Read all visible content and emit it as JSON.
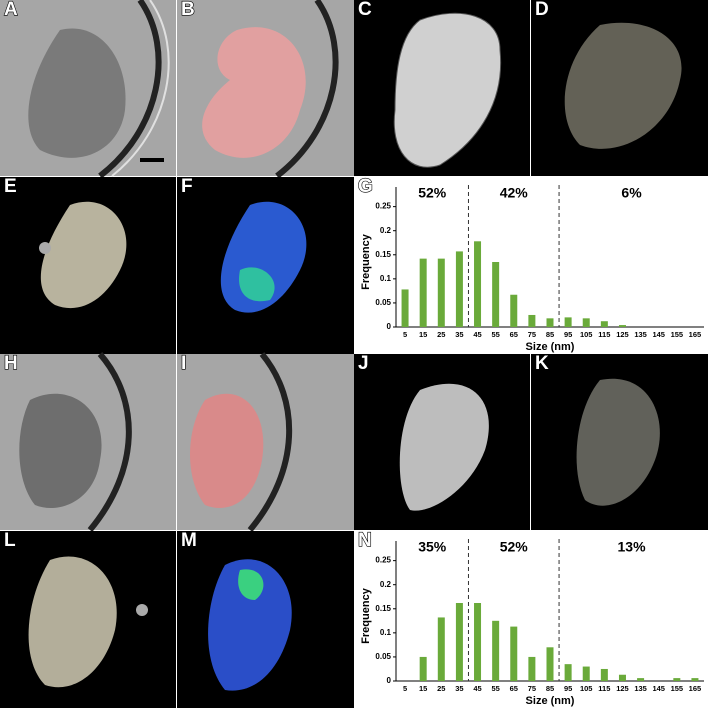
{
  "panels": [
    "A",
    "B",
    "C",
    "D",
    "E",
    "F",
    "G",
    "H",
    "I",
    "J",
    "K",
    "L",
    "M",
    "N"
  ],
  "chart_data": [
    {
      "type": "bar",
      "xlabel": "Size (nm)",
      "ylabel": "Frequency",
      "annotations": [
        "52%",
        "42%",
        "6%"
      ],
      "categories": [
        "5",
        "15",
        "25",
        "35",
        "45",
        "55",
        "65",
        "75",
        "85",
        "95",
        "105",
        "115",
        "125",
        "135",
        "145",
        "155",
        "165"
      ],
      "values": [
        0.078,
        0.142,
        0.142,
        0.157,
        0.178,
        0.135,
        0.067,
        0.025,
        0.018,
        0.02,
        0.018,
        0.012,
        0.004,
        0,
        0,
        0,
        0
      ],
      "color": "#6aaa3a",
      "ylim": [
        0,
        0.27
      ],
      "yticks": [
        0,
        0.05,
        0.1,
        0.15,
        0.2,
        0.25
      ]
    },
    {
      "type": "bar",
      "xlabel": "Size (nm)",
      "ylabel": "Frequency",
      "annotations": [
        "35%",
        "52%",
        "13%"
      ],
      "categories": [
        "5",
        "15",
        "25",
        "35",
        "45",
        "55",
        "65",
        "75",
        "85",
        "95",
        "105",
        "115",
        "125",
        "135",
        "145",
        "155",
        "165"
      ],
      "values": [
        0,
        0.05,
        0.132,
        0.162,
        0.162,
        0.125,
        0.113,
        0.05,
        0.07,
        0.035,
        0.03,
        0.025,
        0.013,
        0.006,
        0,
        0.006,
        0.006
      ],
      "color": "#6aaa3a",
      "ylim": [
        0,
        0.27
      ],
      "yticks": [
        0,
        0.05,
        0.1,
        0.15,
        0.2,
        0.25
      ]
    }
  ]
}
